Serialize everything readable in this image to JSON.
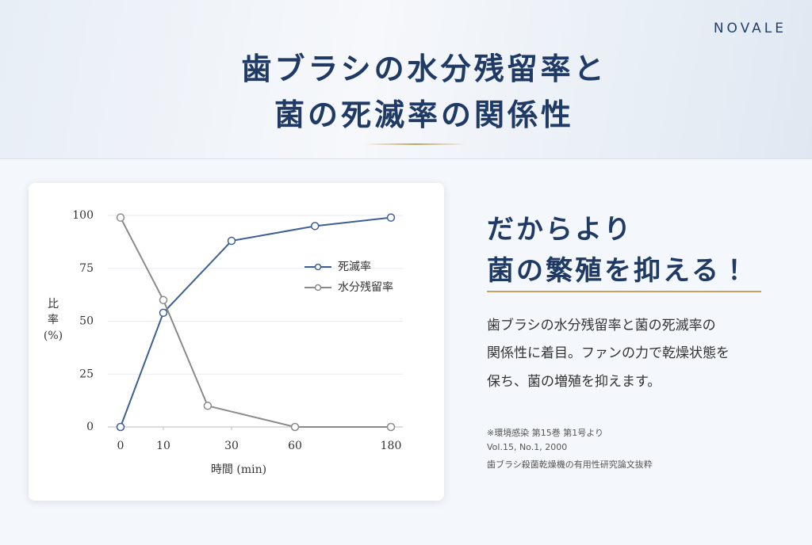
{
  "header": {
    "brand": "NOVALE",
    "title": [
      "歯ブラシの水分残留率と",
      "菌の死滅率の関係性"
    ]
  },
  "chart_data": {
    "type": "line",
    "xlabel": "時間 (min)",
    "ylabel": [
      "比",
      "率",
      "(%)"
    ],
    "xlim": [
      0,
      180
    ],
    "xticks": [
      0,
      10,
      30,
      60,
      180
    ],
    "ylim": [
      0,
      100
    ],
    "yticks": [
      0,
      25,
      50,
      75,
      100
    ],
    "grid": true,
    "legend": "upper-right",
    "series": [
      {
        "name": "死滅率",
        "color": "#3d5f95",
        "x": [
          0,
          10,
          30,
          85,
          180
        ],
        "values": [
          0,
          54,
          88,
          95,
          99
        ]
      },
      {
        "name": "水分残留率",
        "color": "#8a8a8a",
        "x": [
          0,
          10,
          23,
          60,
          180
        ],
        "values": [
          99,
          60,
          10,
          0,
          0
        ]
      }
    ]
  },
  "side": {
    "heading": [
      "だからより",
      "菌の繁殖を抑える！"
    ],
    "body": [
      "歯ブラシの水分残留率と菌の死滅率の",
      "関係性に着目。ファンの力で乾燥状態を",
      "保ち、菌の増殖を抑えます。"
    ],
    "citation": [
      "※環境感染 第15巻 第1号より",
      "Vol.15, No.1, 2000",
      "歯ブラシ殺菌乾燥機の有用性研究論文抜粋"
    ]
  }
}
